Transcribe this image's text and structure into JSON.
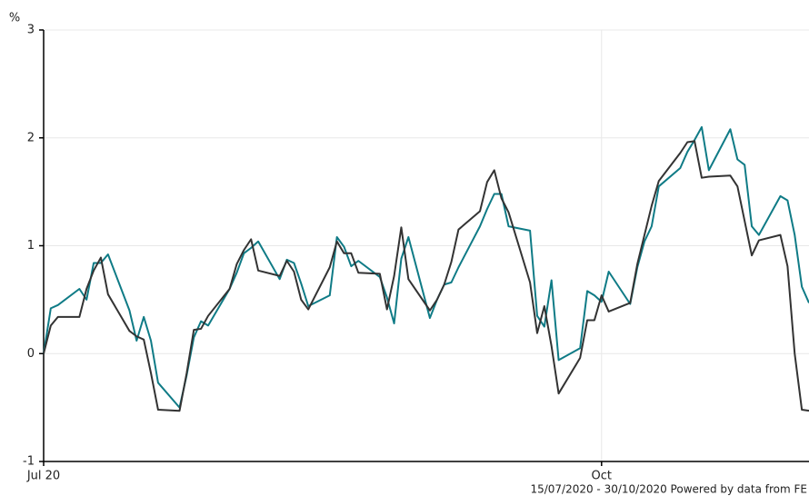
{
  "chart_data": {
    "type": "line",
    "y_label": "%",
    "footer": "15/07/2020 - 30/10/2020 Powered by data from FE",
    "x": [
      0,
      1,
      2,
      5,
      6,
      7,
      8,
      9,
      12,
      13,
      14,
      15,
      16,
      19,
      20,
      21,
      22,
      23,
      26,
      27,
      28,
      29,
      30,
      33,
      34,
      35,
      36,
      37,
      40,
      41,
      42,
      43,
      44,
      47,
      48,
      49,
      50,
      51,
      54,
      55,
      56,
      57,
      58,
      61,
      62,
      63,
      64,
      65,
      68,
      69,
      70,
      71,
      72,
      75,
      76,
      77,
      78,
      79,
      82,
      83,
      84,
      85,
      86,
      89,
      90,
      91,
      92,
      93,
      96,
      97,
      98,
      99,
      100,
      103,
      104,
      105,
      106,
      107
    ],
    "xlim": [
      0,
      107
    ],
    "xticks": [
      {
        "value": 0,
        "label": "Jul 20"
      },
      {
        "value": 78,
        "label": "Oct"
      }
    ],
    "ylim": [
      -1,
      3
    ],
    "yticks": [
      -1,
      0,
      1,
      2,
      3
    ],
    "grid": true,
    "series": [
      {
        "color": "#0f7b86",
        "values": [
          0,
          0.42,
          0.45,
          0.6,
          0.5,
          0.84,
          0.84,
          0.92,
          0.4,
          0.12,
          0.34,
          0.12,
          -0.27,
          -0.5,
          -0.2,
          0.15,
          0.3,
          0.26,
          0.6,
          0.75,
          0.93,
          0.98,
          1.04,
          0.69,
          0.87,
          0.84,
          0.65,
          0.44,
          0.54,
          1.08,
          0.99,
          0.81,
          0.86,
          0.71,
          0.52,
          0.28,
          0.88,
          1.08,
          0.33,
          0.5,
          0.64,
          0.66,
          0.8,
          1.18,
          1.34,
          1.48,
          1.48,
          1.18,
          1.14,
          0.35,
          0.25,
          0.68,
          -0.06,
          0.05,
          0.58,
          0.54,
          0.48,
          0.76,
          0.46,
          0.8,
          1.04,
          1.18,
          1.55,
          1.72,
          1.87,
          1.98,
          2.1,
          1.7,
          2.08,
          1.8,
          1.75,
          1.18,
          1.1,
          1.46,
          1.42,
          1.1,
          0.62,
          0.47
        ]
      },
      {
        "color": "#333333",
        "values": [
          0,
          0.26,
          0.34,
          0.34,
          0.6,
          0.77,
          0.89,
          0.55,
          0.21,
          0.16,
          0.13,
          -0.18,
          -0.52,
          -0.53,
          -0.18,
          0.22,
          0.23,
          0.35,
          0.6,
          0.83,
          0.96,
          1.06,
          0.77,
          0.72,
          0.86,
          0.76,
          0.5,
          0.41,
          0.8,
          1.04,
          0.93,
          0.93,
          0.75,
          0.74,
          0.41,
          0.72,
          1.17,
          0.69,
          0.4,
          0.5,
          0.64,
          0.85,
          1.15,
          1.32,
          1.59,
          1.7,
          1.44,
          1.31,
          0.66,
          0.19,
          0.44,
          0.07,
          -0.37,
          -0.04,
          0.31,
          0.31,
          0.54,
          0.39,
          0.47,
          0.83,
          1.1,
          1.37,
          1.6,
          1.86,
          1.96,
          1.97,
          1.63,
          1.64,
          1.65,
          1.55,
          1.23,
          0.91,
          1.05,
          1.1,
          0.81,
          0,
          -0.52,
          -0.53
        ]
      }
    ]
  }
}
